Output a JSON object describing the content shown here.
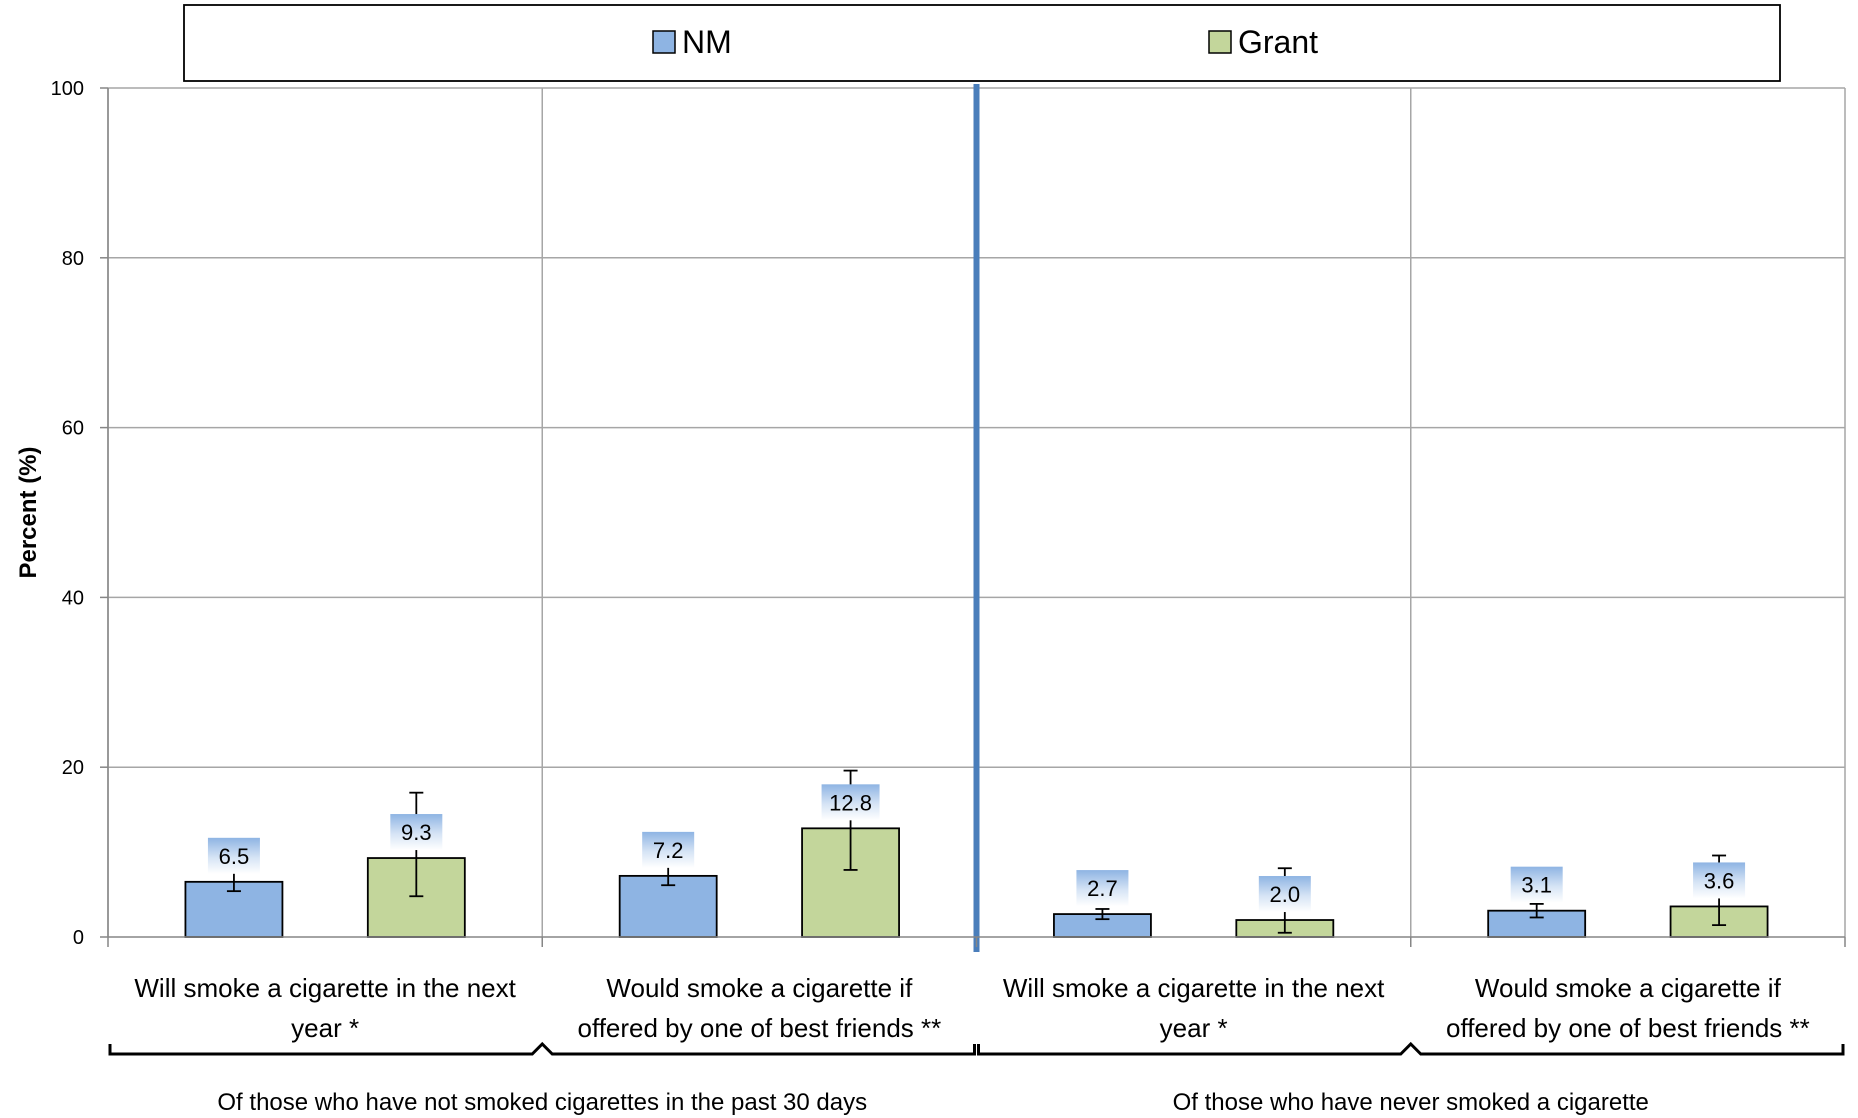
{
  "chart_data": {
    "type": "bar",
    "ylabel": "Percent (%)",
    "ylim": [
      0,
      100
    ],
    "yticks": [
      0,
      20,
      40,
      60,
      80,
      100
    ],
    "grid": true,
    "legend_position": "top",
    "categories": [
      "Will smoke a cigarette in the next year *",
      "Would smoke a cigarette if offered by one of best friends **",
      "Will smoke a cigarette in the next year *",
      "Would smoke a cigarette if offered by one of best friends **"
    ],
    "category_lines": [
      [
        "Will smoke a cigarette in the next",
        "year *"
      ],
      [
        "Would smoke a cigarette if",
        "offered by one of best friends **"
      ],
      [
        "Will smoke a cigarette in the next",
        "year *"
      ],
      [
        "Would smoke a cigarette if",
        "offered by one of best friends **"
      ]
    ],
    "groups": [
      {
        "label": "Of those who have not smoked cigarettes in the past 30 days",
        "categories": [
          0,
          1
        ]
      },
      {
        "label": "Of those who have never smoked a cigarette",
        "categories": [
          2,
          3
        ]
      }
    ],
    "series": [
      {
        "name": "NM",
        "color": "#8eb4e3",
        "values": [
          6.5,
          7.2,
          2.7,
          3.1
        ],
        "labels": [
          "6.5",
          "7.2",
          "2.7",
          "3.1"
        ],
        "err_low": [
          5.4,
          6.1,
          2.1,
          2.3
        ],
        "err_high": [
          7.6,
          8.3,
          3.3,
          3.9
        ]
      },
      {
        "name": "Grant",
        "color": "#c3d69b",
        "values": [
          9.3,
          12.8,
          2.0,
          3.6
        ],
        "labels": [
          "9.3",
          "12.8",
          "2.0",
          "3.6"
        ],
        "err_low": [
          4.8,
          7.9,
          0.5,
          1.4
        ],
        "err_high": [
          17.0,
          19.6,
          8.1,
          9.6
        ]
      }
    ],
    "divider_color": "#4a7ebb"
  }
}
